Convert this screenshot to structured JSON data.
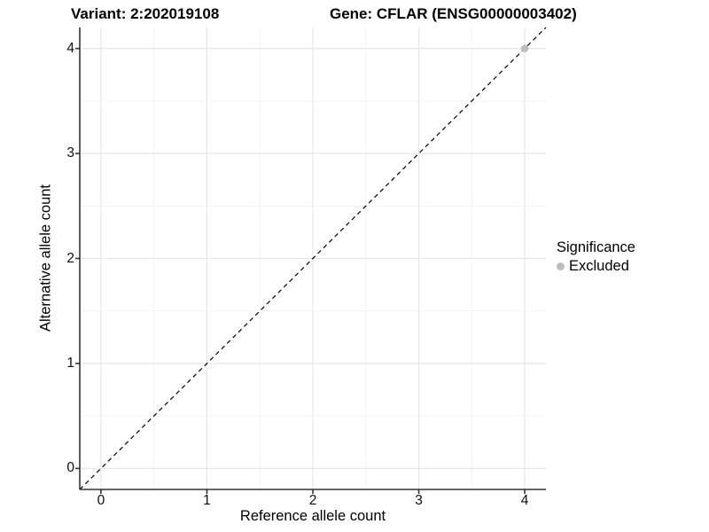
{
  "titles": {
    "variant": "Variant: 2:202019108",
    "gene": "Gene: CFLAR (ENSG00000003402)"
  },
  "legend": {
    "title": "Significance",
    "items": [
      {
        "label": "Excluded",
        "color": "#bdbdbd"
      }
    ]
  },
  "colors": {
    "background": "#ffffff",
    "axis_line": "#333333",
    "tick_mark": "#333333",
    "grid_major": "#e5e5e5",
    "grid_minor": "#f0f0f0",
    "reference_line": "#000000",
    "excluded_point": "#bdbdbd",
    "text": "#000000"
  },
  "chart_data": {
    "type": "scatter",
    "title": "Variant: 2:202019108    Gene: CFLAR (ENSG00000003402)",
    "xlabel": "Reference allele count",
    "ylabel": "Alternative allele count",
    "xlim": [
      -0.2,
      4.2
    ],
    "ylim": [
      -0.2,
      4.2
    ],
    "x_ticks": [
      0,
      1,
      2,
      3,
      4
    ],
    "y_ticks": [
      0,
      1,
      2,
      3,
      4
    ],
    "grid": true,
    "minor_grid_step": 0.5,
    "legend_position": "right",
    "series": [
      {
        "name": "Excluded",
        "color": "#bdbdbd",
        "points": [
          {
            "x": 4,
            "y": 4
          }
        ]
      }
    ],
    "reference_line": {
      "type": "identity",
      "slope": 1,
      "intercept": 0,
      "style": "dashed",
      "color": "#000000"
    }
  }
}
